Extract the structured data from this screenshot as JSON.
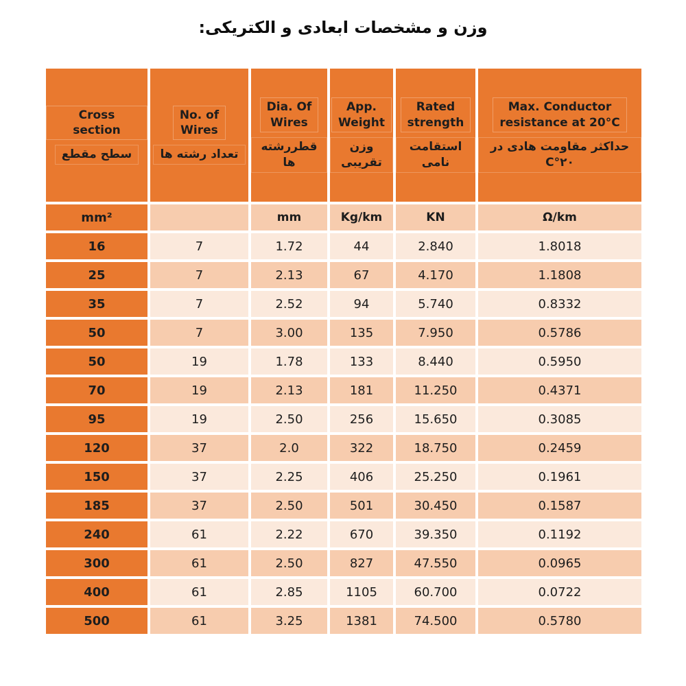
{
  "title": "وزن  و مشخصات ابعادی و الکتریکی:",
  "colors": {
    "header_orange": "#E9792F",
    "row_light": "#FBE9DC",
    "row_dark": "#F7CCAE"
  },
  "table": {
    "columns": [
      {
        "en": "Cross section",
        "fa": "سطح مقطع"
      },
      {
        "en": "No. of\nWires",
        "fa": "تعداد رشته ها"
      },
      {
        "en": "Dia. Of\nWires",
        "fa": "قطررشته ها"
      },
      {
        "en": "App.\nWeight",
        "fa": "وزن تقریبی"
      },
      {
        "en": "Rated\nstrength",
        "fa": "استقامت نامی"
      },
      {
        "en": "Max. Conductor\nresistance at 20°C",
        "fa": "حداکثر مقاومت هادی در ۲۰°C"
      }
    ],
    "units": [
      "mm²",
      "",
      "mm",
      "Kg/km",
      "KN",
      "Ω/km"
    ],
    "rows": [
      [
        "16",
        "7",
        "1.72",
        "44",
        "2.840",
        "1.8018"
      ],
      [
        "25",
        "7",
        "2.13",
        "67",
        "4.170",
        "1.1808"
      ],
      [
        "35",
        "7",
        "2.52",
        "94",
        "5.740",
        "0.8332"
      ],
      [
        "50",
        "7",
        "3.00",
        "135",
        "7.950",
        "0.5786"
      ],
      [
        "50",
        "19",
        "1.78",
        "133",
        "8.440",
        "0.5950"
      ],
      [
        "70",
        "19",
        "2.13",
        "181",
        "11.250",
        "0.4371"
      ],
      [
        "95",
        "19",
        "2.50",
        "256",
        "15.650",
        "0.3085"
      ],
      [
        "120",
        "37",
        "2.0",
        "322",
        "18.750",
        "0.2459"
      ],
      [
        "150",
        "37",
        "2.25",
        "406",
        "25.250",
        "0.1961"
      ],
      [
        "185",
        "37",
        "2.50",
        "501",
        "30.450",
        "0.1587"
      ],
      [
        "240",
        "61",
        "2.22",
        "670",
        "39.350",
        "0.1192"
      ],
      [
        "300",
        "61",
        "2.50",
        "827",
        "47.550",
        "0.0965"
      ],
      [
        "400",
        "61",
        "2.85",
        "1105",
        "60.700",
        "0.0722"
      ],
      [
        "500",
        "61",
        "3.25",
        "1381",
        "74.500",
        "0.5780"
      ]
    ]
  }
}
